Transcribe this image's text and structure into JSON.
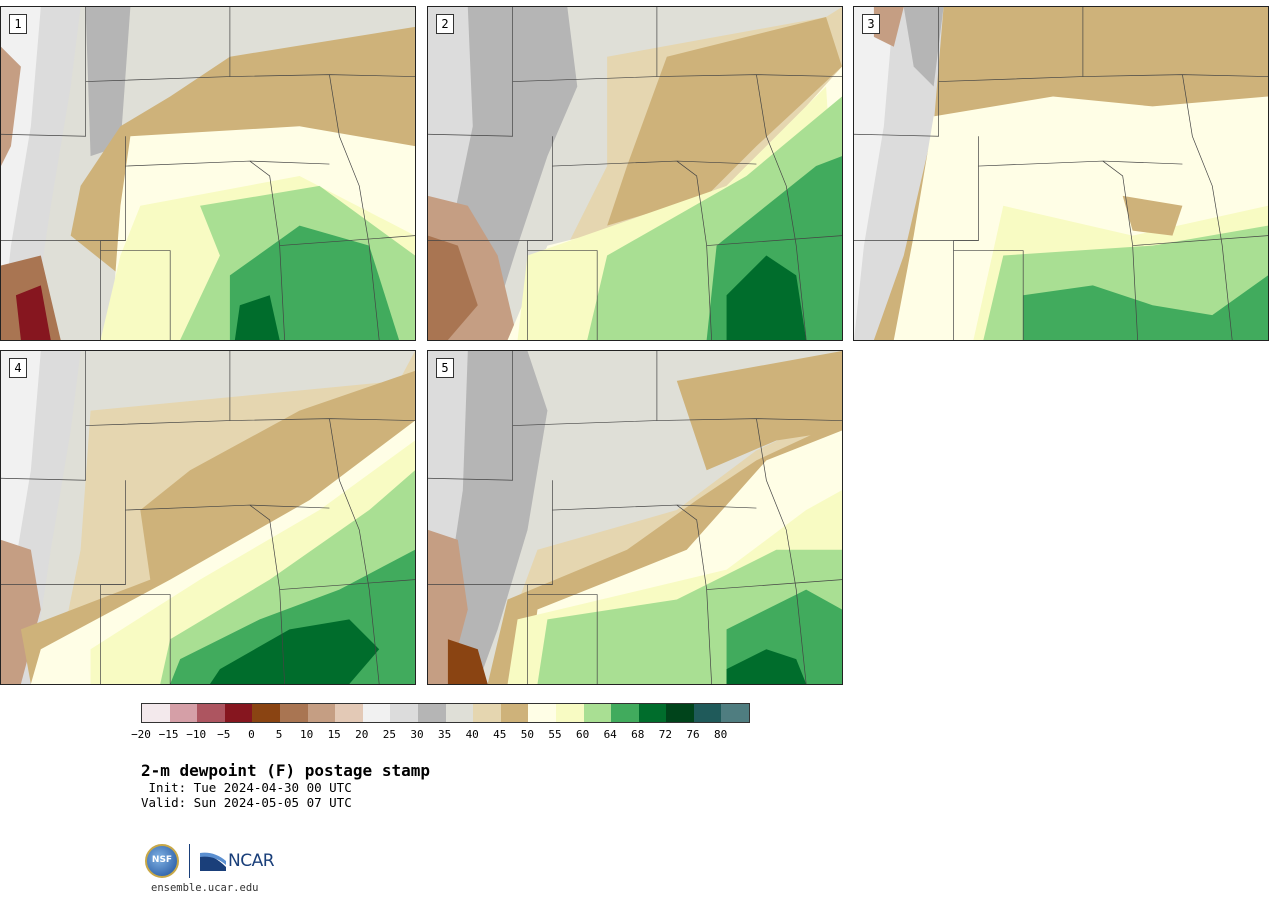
{
  "panels": [
    {
      "label": "1"
    },
    {
      "label": "2"
    },
    {
      "label": "3"
    },
    {
      "label": "4"
    },
    {
      "label": "5"
    }
  ],
  "colorbar": {
    "colors": [
      "#f3e9ec",
      "#d59fa7",
      "#ad5560",
      "#86161f",
      "#8a4412",
      "#a97552",
      "#c59e83",
      "#e3c9b6",
      "#f1f1f1",
      "#dcdcdc",
      "#b5b5b5",
      "#dfdfd7",
      "#e5d6b0",
      "#ceb27a",
      "#fffee6",
      "#f8fbc3",
      "#a9df93",
      "#41ab5d",
      "#006d2c",
      "#00441b",
      "#1f5a5a",
      "#4f7d80"
    ],
    "ticks": [
      "−20",
      "−15",
      "−10",
      "−5",
      "0",
      "5",
      "10",
      "15",
      "20",
      "25",
      "30",
      "35",
      "40",
      "45",
      "50",
      "55",
      "60",
      "64",
      "68",
      "72",
      "76",
      "80"
    ]
  },
  "title": "2-m dewpoint (F) postage stamp",
  "init": " Init: Tue 2024-04-30 00 UTC",
  "valid": "Valid: Sun 2024-05-05 07 UTC",
  "logo": {
    "nsf": "NSF",
    "ncar": "NCAR"
  },
  "site": "ensemble.ucar.edu"
}
